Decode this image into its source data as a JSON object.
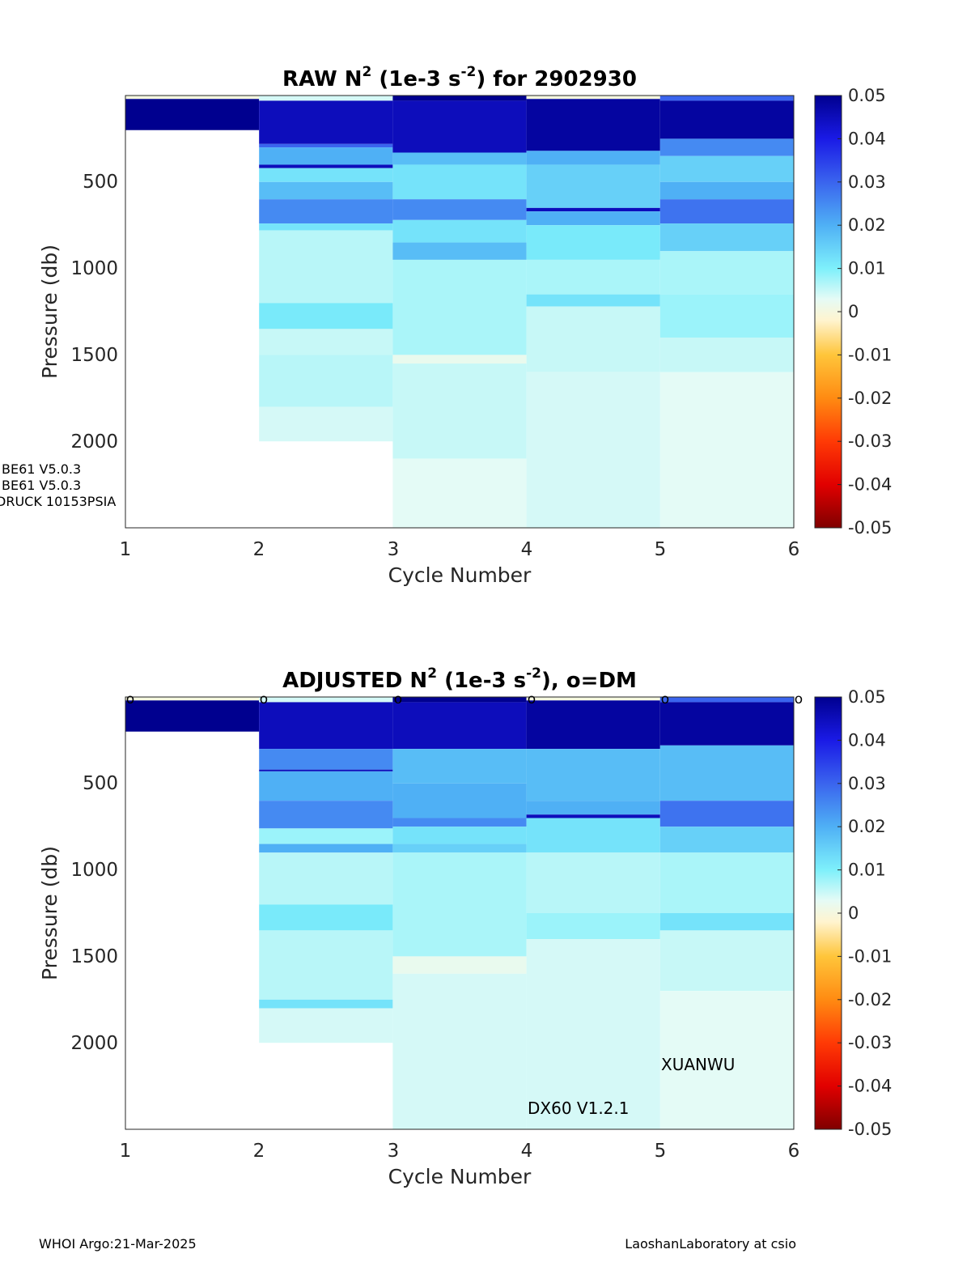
{
  "footer": {
    "left": "WHOI Argo:21-Mar-2025",
    "right": "LaoshanLaboratory at csio"
  },
  "chart_data": [
    {
      "type": "heatmap",
      "title_parts": {
        "a": "RAW N",
        "sup1": "2",
        "b": " (1e-3 s",
        "sup2": "-2",
        "c": ") for 2902930"
      },
      "xlabel": "Cycle Number",
      "ylabel": "Pressure (db)",
      "xlim": [
        1,
        6
      ],
      "ylim": [
        2500,
        0
      ],
      "xticks": [
        "1",
        "2",
        "3",
        "4",
        "5",
        "6"
      ],
      "yticks": [
        "500",
        "1000",
        "1500",
        "2000"
      ],
      "colorbar_ticks": [
        "0.05",
        "0.04",
        "0.03",
        "0.02",
        "0.01",
        "0",
        "-0.01",
        "-0.02",
        "-0.03",
        "-0.04",
        "-0.05"
      ],
      "clim": [
        -0.05,
        0.05
      ],
      "annotations": [
        "BE61 V5.0.3",
        "BE61 V5.0.3",
        "DRUCK 10153PSIA"
      ],
      "markers": [],
      "columns": [
        {
          "cycle": 1,
          "segments": [
            [
              0,
              20,
              0.0
            ],
            [
              20,
              200,
              0.05
            ]
          ]
        },
        {
          "cycle": 2,
          "segments": [
            [
              0,
              30,
              0.004
            ],
            [
              30,
              280,
              0.045
            ],
            [
              280,
              300,
              0.03
            ],
            [
              300,
              400,
              0.02
            ],
            [
              400,
              420,
              0.045
            ],
            [
              420,
              500,
              0.012
            ],
            [
              500,
              600,
              0.018
            ],
            [
              600,
              740,
              0.025
            ],
            [
              740,
              780,
              0.012
            ],
            [
              780,
              1200,
              0.006
            ],
            [
              1200,
              1350,
              0.011
            ],
            [
              1350,
              1500,
              0.005
            ],
            [
              1500,
              1800,
              0.006
            ],
            [
              1800,
              2000,
              0.004
            ]
          ]
        },
        {
          "cycle": 3,
          "segments": [
            [
              0,
              30,
              0.05
            ],
            [
              30,
              330,
              0.045
            ],
            [
              330,
              400,
              0.018
            ],
            [
              400,
              600,
              0.012
            ],
            [
              600,
              720,
              0.025
            ],
            [
              720,
              850,
              0.012
            ],
            [
              850,
              950,
              0.018
            ],
            [
              950,
              1500,
              0.007
            ],
            [
              1500,
              1550,
              0.002
            ],
            [
              1550,
              2100,
              0.005
            ],
            [
              2100,
              2500,
              0.003
            ]
          ]
        },
        {
          "cycle": 4,
          "segments": [
            [
              0,
              20,
              0.0
            ],
            [
              20,
              320,
              0.048
            ],
            [
              320,
              400,
              0.02
            ],
            [
              400,
              650,
              0.015
            ],
            [
              650,
              670,
              0.045
            ],
            [
              670,
              750,
              0.02
            ],
            [
              750,
              950,
              0.011
            ],
            [
              950,
              1150,
              0.007
            ],
            [
              1150,
              1220,
              0.012
            ],
            [
              1220,
              1600,
              0.005
            ],
            [
              1600,
              2500,
              0.004
            ]
          ]
        },
        {
          "cycle": 5,
          "segments": [
            [
              0,
              30,
              0.03
            ],
            [
              30,
              250,
              0.048
            ],
            [
              250,
              350,
              0.025
            ],
            [
              350,
              500,
              0.015
            ],
            [
              500,
              600,
              0.02
            ],
            [
              600,
              740,
              0.028
            ],
            [
              740,
              900,
              0.015
            ],
            [
              900,
              1150,
              0.007
            ],
            [
              1150,
              1400,
              0.008
            ],
            [
              1400,
              1600,
              0.005
            ],
            [
              1600,
              2500,
              0.003
            ]
          ]
        }
      ]
    },
    {
      "type": "heatmap",
      "title_parts": {
        "a": "ADJUSTED N",
        "sup1": "2",
        "b": " (1e-3 s",
        "sup2": "-2",
        "c": "), o=DM"
      },
      "xlabel": "Cycle Number",
      "ylabel": "Pressure (db)",
      "xlim": [
        1,
        6
      ],
      "ylim": [
        2500,
        0
      ],
      "xticks": [
        "1",
        "2",
        "3",
        "4",
        "5",
        "6"
      ],
      "yticks": [
        "500",
        "1000",
        "1500",
        "2000"
      ],
      "colorbar_ticks": [
        "0.05",
        "0.04",
        "0.03",
        "0.02",
        "0.01",
        "0",
        "-0.01",
        "-0.02",
        "-0.03",
        "-0.04",
        "-0.05"
      ],
      "clim": [
        -0.05,
        0.05
      ],
      "annotations": [
        "XUANWU",
        "DX60 V1.2.1"
      ],
      "markers": [
        "o",
        "o",
        "o",
        "o",
        "o",
        "o"
      ],
      "columns": [
        {
          "cycle": 1,
          "segments": [
            [
              0,
              20,
              0.0
            ],
            [
              20,
              200,
              0.05
            ]
          ]
        },
        {
          "cycle": 2,
          "segments": [
            [
              0,
              30,
              0.004
            ],
            [
              30,
              300,
              0.045
            ],
            [
              300,
              420,
              0.025
            ],
            [
              420,
              430,
              0.045
            ],
            [
              430,
              600,
              0.02
            ],
            [
              600,
              760,
              0.025
            ],
            [
              760,
              850,
              0.008
            ],
            [
              850,
              900,
              0.02
            ],
            [
              900,
              1200,
              0.006
            ],
            [
              1200,
              1350,
              0.011
            ],
            [
              1350,
              1750,
              0.006
            ],
            [
              1750,
              1800,
              0.012
            ],
            [
              1800,
              2000,
              0.004
            ]
          ]
        },
        {
          "cycle": 3,
          "segments": [
            [
              0,
              30,
              0.05
            ],
            [
              30,
              300,
              0.045
            ],
            [
              300,
              500,
              0.018
            ],
            [
              500,
              700,
              0.02
            ],
            [
              700,
              750,
              0.025
            ],
            [
              750,
              850,
              0.012
            ],
            [
              850,
              900,
              0.015
            ],
            [
              900,
              1500,
              0.007
            ],
            [
              1500,
              1600,
              0.002
            ],
            [
              1600,
              2500,
              0.004
            ]
          ]
        },
        {
          "cycle": 4,
          "segments": [
            [
              0,
              20,
              0.0
            ],
            [
              20,
              300,
              0.048
            ],
            [
              300,
              600,
              0.018
            ],
            [
              600,
              680,
              0.02
            ],
            [
              680,
              700,
              0.045
            ],
            [
              700,
              900,
              0.012
            ],
            [
              900,
              1250,
              0.006
            ],
            [
              1250,
              1400,
              0.008
            ],
            [
              1400,
              2500,
              0.004
            ]
          ]
        },
        {
          "cycle": 5,
          "segments": [
            [
              0,
              30,
              0.03
            ],
            [
              30,
              280,
              0.048
            ],
            [
              280,
              600,
              0.018
            ],
            [
              600,
              750,
              0.028
            ],
            [
              750,
              900,
              0.015
            ],
            [
              900,
              1250,
              0.007
            ],
            [
              1250,
              1350,
              0.012
            ],
            [
              1350,
              1700,
              0.005
            ],
            [
              1700,
              2500,
              0.003
            ]
          ]
        }
      ]
    }
  ]
}
